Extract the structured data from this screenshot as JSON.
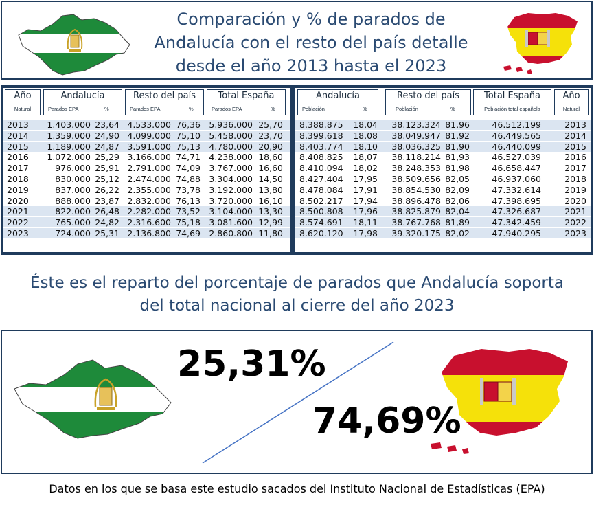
{
  "header": {
    "title_lines": [
      "Comparación y % de parados de",
      "Andalucía con el resto del país detalle",
      "desde el año 2013 hasta el 2023"
    ]
  },
  "table": {
    "left_headers": {
      "year": {
        "title": "Año",
        "sub": "Natural"
      },
      "andalucia": {
        "title": "Andalucía",
        "sub1": "Parados EPA",
        "sub2": "%"
      },
      "resto": {
        "title": "Resto del país",
        "sub1": "Parados EPA",
        "sub2": "%"
      },
      "total": {
        "title": "Total España",
        "sub1": "Parados EPA",
        "sub2": "%"
      }
    },
    "right_headers": {
      "andalucia": {
        "title": "Andalucía",
        "sub1": "Población",
        "sub2": "%"
      },
      "resto": {
        "title": "Resto del país",
        "sub1": "Población",
        "sub2": "%"
      },
      "total": {
        "title": "Total España",
        "sub1": "Población total española"
      },
      "year": {
        "title": "Año",
        "sub": "Natural"
      }
    },
    "rows": [
      {
        "year": "2013",
        "and_parados": "1.403.000",
        "and_pct": "23,64",
        "resto_parados": "4.533.000",
        "resto_pct": "76,36",
        "total_parados": "5.936.000",
        "total_pct": "25,70",
        "and_pob": "8.388.875",
        "and_pob_pct": "18,04",
        "resto_pob": "38.123.324",
        "resto_pob_pct": "81,96",
        "total_pob": "46.512.199",
        "shaded": true
      },
      {
        "year": "2014",
        "and_parados": "1.359.000",
        "and_pct": "24,90",
        "resto_parados": "4.099.000",
        "resto_pct": "75,10",
        "total_parados": "5.458.000",
        "total_pct": "23,70",
        "and_pob": "8.399.618",
        "and_pob_pct": "18,08",
        "resto_pob": "38.049.947",
        "resto_pob_pct": "81,92",
        "total_pob": "46.449.565",
        "shaded": true
      },
      {
        "year": "2015",
        "and_parados": "1.189.000",
        "and_pct": "24,87",
        "resto_parados": "3.591.000",
        "resto_pct": "75,13",
        "total_parados": "4.780.000",
        "total_pct": "20,90",
        "and_pob": "8.403.774",
        "and_pob_pct": "18,10",
        "resto_pob": "38.036.325",
        "resto_pob_pct": "81,90",
        "total_pob": "46.440.099",
        "shaded": true
      },
      {
        "year": "2016",
        "and_parados": "1.072.000",
        "and_pct": "25,29",
        "resto_parados": "3.166.000",
        "resto_pct": "74,71",
        "total_parados": "4.238.000",
        "total_pct": "18,60",
        "and_pob": "8.408.825",
        "and_pob_pct": "18,07",
        "resto_pob": "38.118.214",
        "resto_pob_pct": "81,93",
        "total_pob": "46.527.039",
        "shaded": false
      },
      {
        "year": "2017",
        "and_parados": "976.000",
        "and_pct": "25,91",
        "resto_parados": "2.791.000",
        "resto_pct": "74,09",
        "total_parados": "3.767.000",
        "total_pct": "16,60",
        "and_pob": "8.410.094",
        "and_pob_pct": "18,02",
        "resto_pob": "38.248.353",
        "resto_pob_pct": "81,98",
        "total_pob": "46.658.447",
        "shaded": false
      },
      {
        "year": "2018",
        "and_parados": "830.000",
        "and_pct": "25,12",
        "resto_parados": "2.474.000",
        "resto_pct": "74,88",
        "total_parados": "3.304.000",
        "total_pct": "14,50",
        "and_pob": "8.427.404",
        "and_pob_pct": "17,95",
        "resto_pob": "38.509.656",
        "resto_pob_pct": "82,05",
        "total_pob": "46.937.060",
        "shaded": false
      },
      {
        "year": "2019",
        "and_parados": "837.000",
        "and_pct": "26,22",
        "resto_parados": "2.355.000",
        "resto_pct": "73,78",
        "total_parados": "3.192.000",
        "total_pct": "13,80",
        "and_pob": "8.478.084",
        "and_pob_pct": "17,91",
        "resto_pob": "38.854.530",
        "resto_pob_pct": "82,09",
        "total_pob": "47.332.614",
        "shaded": false
      },
      {
        "year": "2020",
        "and_parados": "888.000",
        "and_pct": "23,87",
        "resto_parados": "2.832.000",
        "resto_pct": "76,13",
        "total_parados": "3.720.000",
        "total_pct": "16,10",
        "and_pob": "8.502.217",
        "and_pob_pct": "17,94",
        "resto_pob": "38.896.478",
        "resto_pob_pct": "82,06",
        "total_pob": "47.398.695",
        "shaded": false
      },
      {
        "year": "2021",
        "and_parados": "822.000",
        "and_pct": "26,48",
        "resto_parados": "2.282.000",
        "resto_pct": "73,52",
        "total_parados": "3.104.000",
        "total_pct": "13,30",
        "and_pob": "8.500.808",
        "and_pob_pct": "17,96",
        "resto_pob": "38.825.879",
        "resto_pob_pct": "82,04",
        "total_pob": "47.326.687",
        "shaded": true
      },
      {
        "year": "2022",
        "and_parados": "765.000",
        "and_pct": "24,82",
        "resto_parados": "2.316.600",
        "resto_pct": "75,18",
        "total_parados": "3.081.600",
        "total_pct": "12,99",
        "and_pob": "8.574.691",
        "and_pob_pct": "18,11",
        "resto_pob": "38.767.768",
        "resto_pob_pct": "81,89",
        "total_pob": "47.342.459",
        "shaded": true
      },
      {
        "year": "2023",
        "and_parados": "724.000",
        "and_pct": "25,31",
        "resto_parados": "2.136.800",
        "resto_pct": "74,69",
        "total_parados": "2.860.800",
        "total_pct": "11,80",
        "and_pob": "8.620.120",
        "and_pob_pct": "17,98",
        "resto_pob": "39.320.175",
        "resto_pob_pct": "82,02",
        "total_pob": "47.940.295",
        "shaded": true
      }
    ]
  },
  "subtitle": {
    "lines": [
      "Éste es el reparto del porcentaje de parados que Andalucía soporta",
      "del total nacional al cierre del año 2023"
    ]
  },
  "comparison": {
    "andalucia_pct": "25,31%",
    "resto_pct": "74,69%"
  },
  "footer": {
    "text": "Datos en los que se basa este estudio sacados del Instituto Nacional de Estadísticas (EPA)"
  },
  "colors": {
    "andalucia_green": "#1e8a3a",
    "spain_red": "#c8102e",
    "spain_yellow": "#f5e10a",
    "border_navy": "#1f3b5c",
    "title_blue": "#2a4a72",
    "row_shade": "#dbe5f1"
  }
}
